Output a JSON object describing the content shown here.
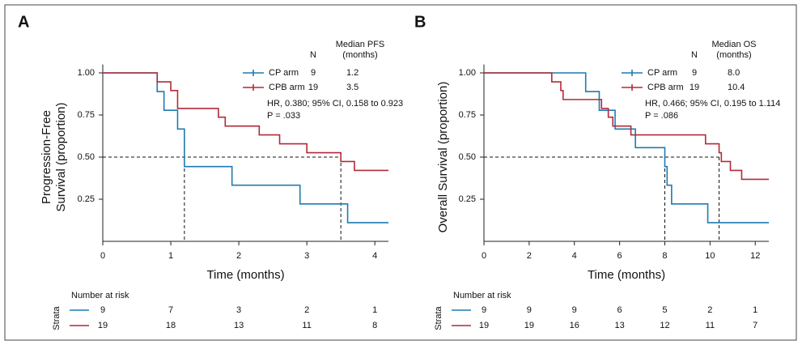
{
  "chart_data": [
    {
      "type": "step",
      "panel_label": "A",
      "xlabel": "Time (months)",
      "ylabel": [
        "Progression-Free",
        "Survival (proportion)"
      ],
      "xlim": [
        0,
        4.2
      ],
      "ylim": [
        0,
        1.05
      ],
      "xticks": [
        0,
        1,
        2,
        3,
        4
      ],
      "yticks": [
        {
          "value": 0.25,
          "label": "0.25"
        },
        {
          "value": 0.5,
          "label": "0.50"
        },
        {
          "value": 0.75,
          "label": "0.75"
        },
        {
          "value": 1,
          "label": "1.00"
        }
      ],
      "legend_headers": {
        "n": "N",
        "median": [
          "Median PFS",
          "(months)"
        ]
      },
      "series": [
        {
          "name": "CP arm",
          "color": "#1f7bb0",
          "n": 9,
          "median": 1.2,
          "x": [
            0,
            0.8,
            0.9,
            1.1,
            1.2,
            1.9,
            2.9,
            3.6,
            4.2
          ],
          "values": [
            1,
            0.889,
            0.778,
            0.667,
            0.444,
            0.333,
            0.222,
            0.111,
            0.111
          ],
          "at_risk": [
            9,
            7,
            3,
            2,
            1
          ]
        },
        {
          "name": "CPB arm",
          "color": "#b22a3a",
          "n": 19,
          "median": 3.5,
          "x": [
            0,
            0.8,
            1.0,
            1.1,
            1.7,
            1.8,
            2.3,
            2.6,
            3.0,
            3.5,
            3.7,
            4.2
          ],
          "values": [
            1,
            0.947,
            0.895,
            0.789,
            0.737,
            0.684,
            0.632,
            0.579,
            0.526,
            0.474,
            0.421,
            0.421
          ],
          "at_risk": [
            19,
            18,
            13,
            11,
            8
          ]
        }
      ],
      "reference_y": 0.5,
      "annotations": [
        "HR, 0.380; 95% CI, 0.158 to 0.923",
        "P = .033"
      ],
      "risk_table": {
        "title": "Number at risk",
        "strata_label": "Strata"
      }
    },
    {
      "type": "step",
      "panel_label": "B",
      "xlabel": "Time (months)",
      "ylabel": [
        "Overall Survival (proportion)"
      ],
      "xlim": [
        0,
        12.6
      ],
      "ylim": [
        0,
        1.05
      ],
      "xticks": [
        0,
        2,
        4,
        6,
        8,
        10,
        12
      ],
      "yticks": [
        {
          "value": 0.25,
          "label": "0.25"
        },
        {
          "value": 0.5,
          "label": "0.50"
        },
        {
          "value": 0.75,
          "label": "0.75"
        },
        {
          "value": 1,
          "label": "1.00"
        }
      ],
      "legend_headers": {
        "n": "N",
        "median": [
          "Median OS",
          "(months)"
        ]
      },
      "series": [
        {
          "name": "CP arm",
          "color": "#1f7bb0",
          "n": 9,
          "median": {
            "value": 8,
            "label": "8.0"
          },
          "x": [
            0,
            4.5,
            5.1,
            5.8,
            6.7,
            8.0,
            8.1,
            8.3,
            9.9,
            12.6
          ],
          "values": [
            1,
            0.889,
            0.778,
            0.667,
            0.556,
            0.444,
            0.333,
            0.222,
            0.111,
            0.111
          ],
          "at_risk": [
            9,
            9,
            9,
            6,
            5,
            2,
            1
          ]
        },
        {
          "name": "CPB arm",
          "color": "#b22a3a",
          "n": 19,
          "median": 10.4,
          "x": [
            0,
            3.0,
            3.4,
            3.5,
            5.2,
            5.5,
            5.7,
            6.5,
            9.8,
            10.4,
            10.5,
            10.9,
            11.4,
            12.6
          ],
          "values": [
            1,
            0.947,
            0.895,
            0.842,
            0.789,
            0.737,
            0.684,
            0.632,
            0.579,
            0.526,
            0.474,
            0.421,
            0.368,
            0.368
          ],
          "at_risk": [
            19,
            19,
            16,
            13,
            12,
            11,
            7
          ]
        }
      ],
      "reference_y": 0.5,
      "annotations": [
        "HR, 0.466; 95% CI, 0.195 to 1.114",
        "P = .086"
      ],
      "risk_table": {
        "title": "Number at risk",
        "strata_label": "Strata"
      }
    }
  ]
}
